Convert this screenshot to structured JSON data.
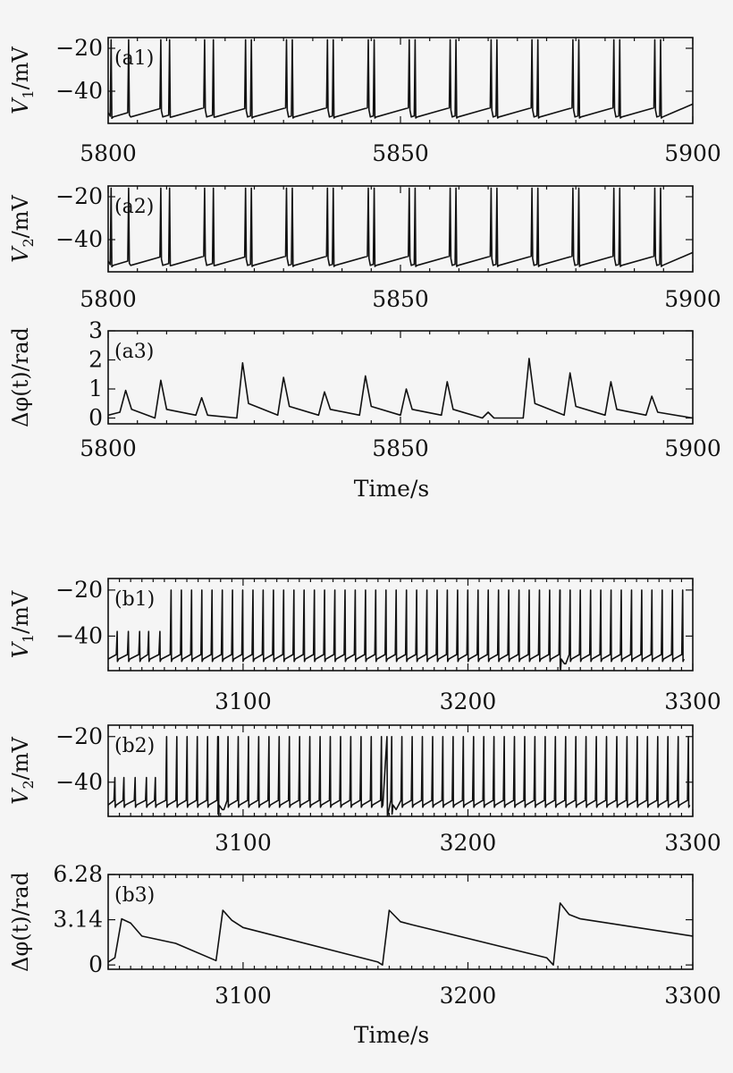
{
  "chart_data": [
    {
      "type": "line",
      "panel": "(a1)",
      "ylabel": "V1/mV",
      "xlim": [
        5800,
        5900
      ],
      "ylim": [
        -55,
        -15
      ],
      "xticks": [
        "5800",
        "5850",
        "5900"
      ],
      "yticks": [
        "−20",
        "−40"
      ],
      "series": [
        {
          "name": "",
          "baseline_mV": -52,
          "peak_mV": -16,
          "spike_times": [
            5800.5,
            5803.5,
            5809,
            5810.5,
            5816.5,
            5818,
            5823.5,
            5824.5,
            5830.5,
            5831.5,
            5837.5,
            5838.5,
            5844.5,
            5845.5,
            5851.5,
            5852.5,
            5858.5,
            5859.5,
            5865.5,
            5866.5,
            5872.5,
            5873.5,
            5879.5,
            5880.5,
            5886.5,
            5887.5,
            5893.5,
            5894.5
          ]
        }
      ]
    },
    {
      "type": "line",
      "panel": "(a2)",
      "ylabel": "V2/mV",
      "xlim": [
        5800,
        5900
      ],
      "ylim": [
        -55,
        -15
      ],
      "xticks": [
        "5800",
        "5850",
        "5900"
      ],
      "yticks": [
        "−20",
        "−40"
      ],
      "series": [
        {
          "name": "",
          "baseline_mV": -52,
          "peak_mV": -16,
          "spike_times": [
            5800.5,
            5803.5,
            5809,
            5810.5,
            5816.5,
            5818,
            5823.5,
            5824.5,
            5830.5,
            5831.5,
            5837.5,
            5838.5,
            5844.5,
            5845.5,
            5851.5,
            5852.5,
            5858.5,
            5859.5,
            5865.5,
            5866.5,
            5872.5,
            5873.5,
            5879.5,
            5880.5,
            5886.5,
            5887.5,
            5893.5,
            5894.5
          ]
        }
      ]
    },
    {
      "type": "line",
      "panel": "(a3)",
      "ylabel": "Δφ(t)/rad",
      "xlabel": "Time/s",
      "xlim": [
        5800,
        5900
      ],
      "ylim": [
        -0.2,
        3
      ],
      "xticks": [
        "5800",
        "5850",
        "5900"
      ],
      "yticks": [
        "0",
        "1",
        "2",
        "3"
      ],
      "series": [
        {
          "name": "",
          "x": [
            5800,
            5802,
            5803,
            5804,
            5808,
            5809,
            5810,
            5815,
            5816,
            5817,
            5822,
            5823,
            5824,
            5829,
            5830,
            5831,
            5836,
            5837,
            5838,
            5843,
            5844,
            5845,
            5850,
            5851,
            5852,
            5857,
            5858,
            5859,
            5864,
            5865,
            5866,
            5871,
            5872,
            5873,
            5878,
            5879,
            5880,
            5885,
            5886,
            5887,
            5892,
            5893,
            5894,
            5900
          ],
          "y": [
            0.1,
            0.2,
            0.95,
            0.3,
            0.0,
            1.3,
            0.3,
            0.1,
            0.7,
            0.1,
            0.0,
            1.9,
            0.5,
            0.1,
            1.4,
            0.4,
            0.1,
            0.9,
            0.3,
            0.1,
            1.45,
            0.4,
            0.1,
            1.0,
            0.3,
            0.1,
            1.25,
            0.3,
            0.0,
            0.2,
            0.0,
            0.0,
            2.05,
            0.5,
            0.1,
            1.55,
            0.4,
            0.1,
            1.25,
            0.3,
            0.1,
            0.75,
            0.2,
            0.0
          ]
        }
      ]
    },
    {
      "type": "line",
      "panel": "(b1)",
      "ylabel": "V1/mV",
      "xlim": [
        3040,
        3300
      ],
      "ylim": [
        -55,
        -15
      ],
      "xticks": [
        "3100",
        "3200",
        "3300"
      ],
      "yticks": [
        "−20",
        "−40"
      ],
      "series": [
        {
          "name": "",
          "baseline_mV": -50,
          "peak_mV": -20,
          "small_peak_mV": -38,
          "small_spikes": [
            3044,
            3049,
            3054,
            3058,
            3063
          ],
          "spike_start": 3068,
          "spike_period": 4.55,
          "spike_end": 3300,
          "reset_times": [
            3241
          ]
        }
      ]
    },
    {
      "type": "line",
      "panel": "(b2)",
      "ylabel": "V2/mV",
      "xlim": [
        3040,
        3300
      ],
      "ylim": [
        -55,
        -15
      ],
      "xticks": [
        "3100",
        "3200",
        "3300"
      ],
      "yticks": [
        "−20",
        "−40"
      ],
      "series": [
        {
          "name": "",
          "baseline_mV": -50,
          "peak_mV": -20,
          "small_peak_mV": -38,
          "small_spikes": [
            3043,
            3047,
            3052,
            3057,
            3061
          ],
          "spike_start": 3066,
          "spike_period": 4.55,
          "spike_end": 3300,
          "reset_times": [
            3089,
            3164
          ]
        }
      ]
    },
    {
      "type": "line",
      "panel": "(b3)",
      "ylabel": "Δφ(t)/rad",
      "xlabel": "Time/s",
      "xlim": [
        3040,
        3300
      ],
      "ylim": [
        -0.3,
        6.28
      ],
      "xticks": [
        "3100",
        "3200",
        "3300"
      ],
      "yticks": [
        "0",
        "3.14",
        "6.28"
      ],
      "series": [
        {
          "name": "",
          "x": [
            3040,
            3043,
            3046,
            3050,
            3055,
            3070,
            3088,
            3091,
            3095,
            3100,
            3160,
            3162,
            3165,
            3170,
            3175,
            3235,
            3238,
            3241,
            3245,
            3250,
            3300
          ],
          "y": [
            0.2,
            0.5,
            3.2,
            2.9,
            2.0,
            1.5,
            0.3,
            3.8,
            3.1,
            2.6,
            0.2,
            0.0,
            3.8,
            3.0,
            2.8,
            0.5,
            0.0,
            4.3,
            3.5,
            3.2,
            2.0
          ]
        }
      ]
    }
  ]
}
